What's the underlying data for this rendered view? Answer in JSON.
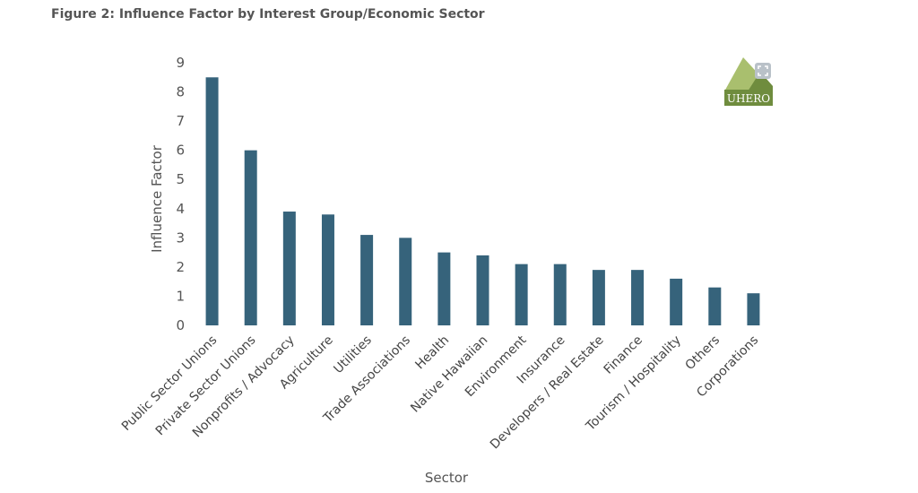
{
  "figure": {
    "title": "Figure 2: Influence Factor by Interest Group/Economic Sector",
    "logo_text": "UHERO"
  },
  "colors": {
    "bar": "#36637b",
    "logo_light": "#a9bf6e",
    "logo_dark": "#6f8c3e",
    "logo_blue": "#3c5c7a"
  },
  "icons": {
    "fullscreen": "fullscreen-icon"
  },
  "chart_data": {
    "type": "bar",
    "title": "",
    "xlabel": "Sector",
    "ylabel": "Influence Factor",
    "ylim": [
      0,
      9
    ],
    "yticks": [
      "0",
      "1",
      "2",
      "3",
      "4",
      "5",
      "6",
      "7",
      "8",
      "9"
    ],
    "grid": false,
    "categories": [
      "Public Sector Unions",
      "Private Sector Unions",
      "Nonprofits / Advocacy",
      "Agriculture",
      "Utilities",
      "Trade Associations",
      "Health",
      "Native Hawaiian",
      "Environment",
      "Insurance",
      "Developers / Real Estate",
      "Finance",
      "Tourism / Hospitality",
      "Others",
      "Corporations"
    ],
    "values": [
      8.5,
      6.0,
      3.9,
      3.8,
      3.1,
      3.0,
      2.5,
      2.4,
      2.1,
      2.1,
      1.9,
      1.9,
      1.6,
      1.3,
      1.1
    ]
  }
}
